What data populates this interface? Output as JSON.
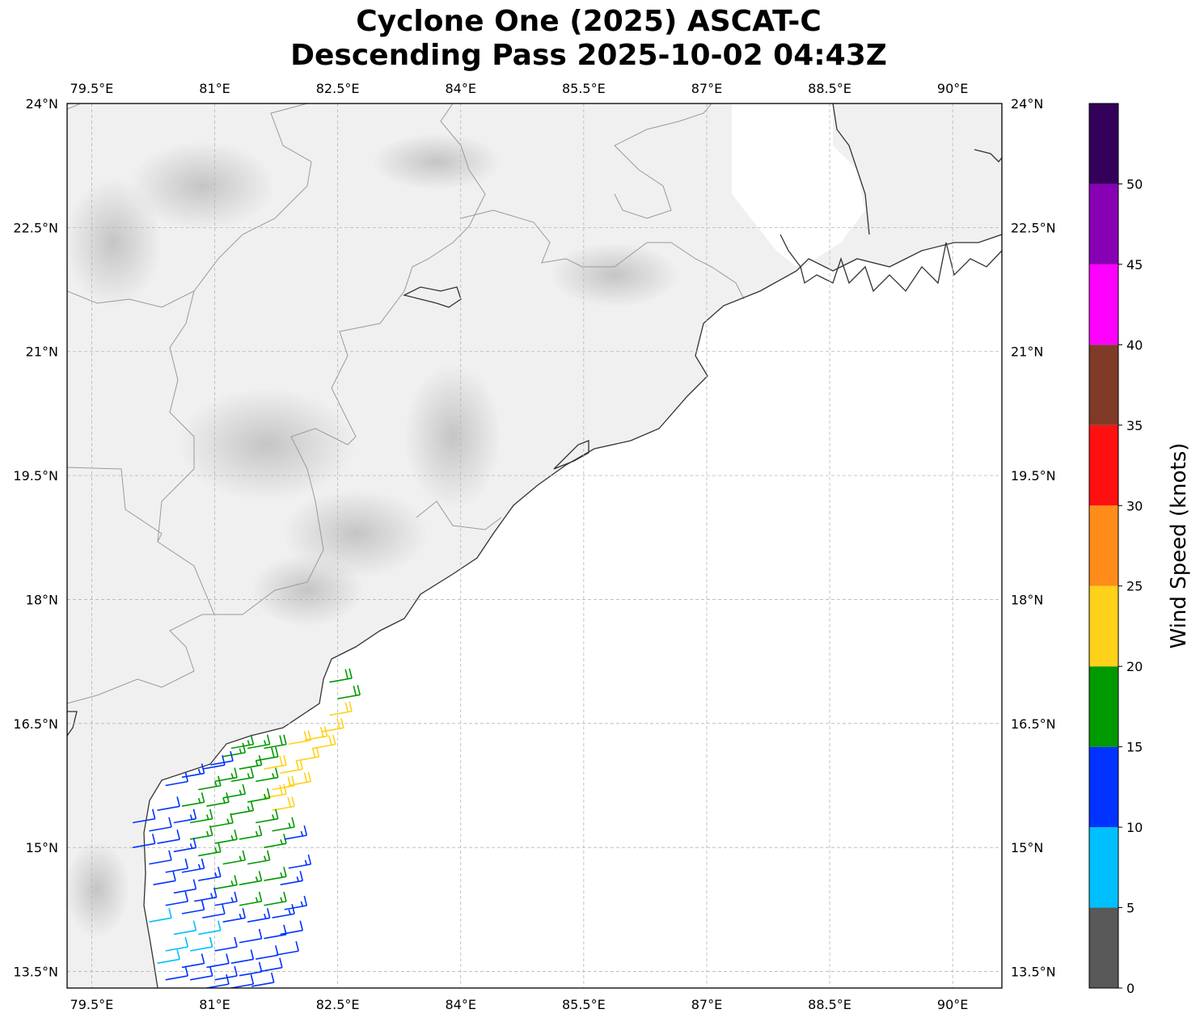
{
  "title_line1": "Cyclone One (2025) ASCAT-C",
  "title_line2": "Descending Pass 2025-10-02 04:43Z",
  "lon_labels": [
    "79.5°E",
    "81°E",
    "82.5°E",
    "84°E",
    "85.5°E",
    "87°E",
    "88.5°E",
    "90°E"
  ],
  "lat_labels": [
    "24°N",
    "22.5°N",
    "21°N",
    "19.5°N",
    "18°N",
    "16.5°N",
    "15°N",
    "13.5°N"
  ],
  "colorbar": {
    "label": "Wind Speed (knots)",
    "ticks": [
      "0",
      "5",
      "10",
      "15",
      "20",
      "25",
      "30",
      "35",
      "40",
      "45",
      "50"
    ],
    "bins": [
      {
        "from": 0,
        "to": 5,
        "color": "#595959"
      },
      {
        "from": 5,
        "to": 10,
        "color": "#00bfff"
      },
      {
        "from": 10,
        "to": 15,
        "color": "#0033ff"
      },
      {
        "from": 15,
        "to": 20,
        "color": "#009900"
      },
      {
        "from": 20,
        "to": 25,
        "color": "#ffd11a"
      },
      {
        "from": 25,
        "to": 30,
        "color": "#ff8c1a"
      },
      {
        "from": 30,
        "to": 35,
        "color": "#ff1010"
      },
      {
        "from": 35,
        "to": 40,
        "color": "#7f3b28"
      },
      {
        "from": 40,
        "to": 45,
        "color": "#ff00ff"
      },
      {
        "from": 45,
        "to": 50,
        "color": "#8800b3"
      },
      {
        "from": 50,
        "to": 55,
        "color": "#33005a"
      }
    ]
  },
  "map_extent": {
    "lon_min": 79.2,
    "lon_max": 90.6,
    "lat_min": 13.3,
    "lat_max": 24.0
  },
  "chart_data": {
    "type": "wind-barb-map",
    "units": "knots",
    "barbs": [
      {
        "lon": 82.4,
        "lat": 17.0,
        "speed": 18
      },
      {
        "lon": 82.5,
        "lat": 16.8,
        "speed": 18
      },
      {
        "lon": 82.4,
        "lat": 16.6,
        "speed": 21
      },
      {
        "lon": 82.3,
        "lat": 16.4,
        "speed": 22
      },
      {
        "lon": 82.1,
        "lat": 16.3,
        "speed": 22
      },
      {
        "lon": 82.2,
        "lat": 16.2,
        "speed": 22
      },
      {
        "lon": 81.9,
        "lat": 16.25,
        "speed": 22
      },
      {
        "lon": 82.0,
        "lat": 16.05,
        "speed": 22
      },
      {
        "lon": 81.8,
        "lat": 15.9,
        "speed": 22
      },
      {
        "lon": 81.9,
        "lat": 15.75,
        "speed": 22
      },
      {
        "lon": 81.7,
        "lat": 15.7,
        "speed": 22
      },
      {
        "lon": 81.7,
        "lat": 15.45,
        "speed": 21
      },
      {
        "lon": 81.6,
        "lat": 15.6,
        "speed": 21
      },
      {
        "lon": 81.6,
        "lat": 15.95,
        "speed": 21
      },
      {
        "lon": 81.5,
        "lat": 16.05,
        "speed": 18
      },
      {
        "lon": 81.6,
        "lat": 16.2,
        "speed": 18
      },
      {
        "lon": 81.4,
        "lat": 16.2,
        "speed": 17
      },
      {
        "lon": 81.2,
        "lat": 16.2,
        "speed": 17
      },
      {
        "lon": 81.1,
        "lat": 16.1,
        "speed": 16
      },
      {
        "lon": 81.3,
        "lat": 15.95,
        "speed": 17
      },
      {
        "lon": 81.5,
        "lat": 15.8,
        "speed": 17
      },
      {
        "lon": 81.2,
        "lat": 15.8,
        "speed": 17
      },
      {
        "lon": 81.0,
        "lat": 15.8,
        "speed": 16
      },
      {
        "lon": 80.8,
        "lat": 15.7,
        "speed": 15
      },
      {
        "lon": 81.1,
        "lat": 15.6,
        "speed": 17
      },
      {
        "lon": 81.4,
        "lat": 15.55,
        "speed": 17
      },
      {
        "lon": 80.9,
        "lat": 15.5,
        "speed": 16
      },
      {
        "lon": 80.6,
        "lat": 15.5,
        "speed": 16
      },
      {
        "lon": 81.2,
        "lat": 15.4,
        "speed": 17
      },
      {
        "lon": 81.5,
        "lat": 15.3,
        "speed": 17
      },
      {
        "lon": 81.7,
        "lat": 15.2,
        "speed": 17
      },
      {
        "lon": 80.95,
        "lat": 15.25,
        "speed": 16
      },
      {
        "lon": 80.7,
        "lat": 15.3,
        "speed": 15
      },
      {
        "lon": 81.3,
        "lat": 15.1,
        "speed": 17
      },
      {
        "lon": 81.6,
        "lat": 15.0,
        "speed": 17
      },
      {
        "lon": 81.0,
        "lat": 15.05,
        "speed": 16
      },
      {
        "lon": 80.7,
        "lat": 15.1,
        "speed": 15
      },
      {
        "lon": 81.1,
        "lat": 14.8,
        "speed": 16
      },
      {
        "lon": 81.4,
        "lat": 14.8,
        "speed": 17
      },
      {
        "lon": 80.8,
        "lat": 14.9,
        "speed": 15
      },
      {
        "lon": 81.3,
        "lat": 14.55,
        "speed": 17
      },
      {
        "lon": 81.6,
        "lat": 14.6,
        "speed": 17
      },
      {
        "lon": 81.0,
        "lat": 14.5,
        "speed": 15
      },
      {
        "lon": 81.3,
        "lat": 14.3,
        "speed": 16
      },
      {
        "lon": 81.6,
        "lat": 14.3,
        "speed": 16
      },
      {
        "lon": 81.8,
        "lat": 14.55,
        "speed": 14
      },
      {
        "lon": 81.9,
        "lat": 14.75,
        "speed": 14
      },
      {
        "lon": 81.85,
        "lat": 15.1,
        "speed": 14
      },
      {
        "lon": 80.6,
        "lat": 15.85,
        "speed": 13
      },
      {
        "lon": 80.4,
        "lat": 15.75,
        "speed": 12
      },
      {
        "lon": 80.3,
        "lat": 15.45,
        "speed": 12
      },
      {
        "lon": 80.5,
        "lat": 15.3,
        "speed": 13
      },
      {
        "lon": 80.2,
        "lat": 15.2,
        "speed": 12
      },
      {
        "lon": 80.0,
        "lat": 15.0,
        "speed": 11
      },
      {
        "lon": 80.3,
        "lat": 15.05,
        "speed": 12
      },
      {
        "lon": 80.5,
        "lat": 14.95,
        "speed": 13
      },
      {
        "lon": 80.2,
        "lat": 14.8,
        "speed": 12
      },
      {
        "lon": 80.4,
        "lat": 14.7,
        "speed": 12
      },
      {
        "lon": 80.6,
        "lat": 14.7,
        "speed": 13
      },
      {
        "lon": 80.8,
        "lat": 14.6,
        "speed": 13
      },
      {
        "lon": 80.25,
        "lat": 14.55,
        "speed": 12
      },
      {
        "lon": 80.5,
        "lat": 14.45,
        "speed": 12
      },
      {
        "lon": 80.75,
        "lat": 14.35,
        "speed": 13
      },
      {
        "lon": 81.0,
        "lat": 14.3,
        "speed": 13
      },
      {
        "lon": 80.4,
        "lat": 14.3,
        "speed": 11
      },
      {
        "lon": 80.6,
        "lat": 14.2,
        "speed": 12
      },
      {
        "lon": 80.85,
        "lat": 14.15,
        "speed": 12
      },
      {
        "lon": 81.1,
        "lat": 14.1,
        "speed": 13
      },
      {
        "lon": 81.4,
        "lat": 14.1,
        "speed": 13
      },
      {
        "lon": 81.7,
        "lat": 14.15,
        "speed": 13
      },
      {
        "lon": 81.85,
        "lat": 14.25,
        "speed": 13
      },
      {
        "lon": 80.2,
        "lat": 14.1,
        "speed": 8
      },
      {
        "lon": 80.5,
        "lat": 13.95,
        "speed": 9
      },
      {
        "lon": 80.8,
        "lat": 13.95,
        "speed": 8
      },
      {
        "lon": 80.4,
        "lat": 13.75,
        "speed": 9
      },
      {
        "lon": 80.7,
        "lat": 13.75,
        "speed": 9
      },
      {
        "lon": 81.0,
        "lat": 13.75,
        "speed": 11
      },
      {
        "lon": 81.3,
        "lat": 13.85,
        "speed": 12
      },
      {
        "lon": 81.6,
        "lat": 13.9,
        "speed": 12
      },
      {
        "lon": 81.8,
        "lat": 13.95,
        "speed": 12
      },
      {
        "lon": 80.3,
        "lat": 13.6,
        "speed": 8
      },
      {
        "lon": 80.6,
        "lat": 13.55,
        "speed": 11
      },
      {
        "lon": 80.9,
        "lat": 13.55,
        "speed": 11
      },
      {
        "lon": 81.2,
        "lat": 13.6,
        "speed": 12
      },
      {
        "lon": 81.5,
        "lat": 13.65,
        "speed": 12
      },
      {
        "lon": 81.75,
        "lat": 13.7,
        "speed": 12
      },
      {
        "lon": 80.4,
        "lat": 13.4,
        "speed": 11
      },
      {
        "lon": 80.7,
        "lat": 13.4,
        "speed": 11
      },
      {
        "lon": 81.0,
        "lat": 13.4,
        "speed": 12
      },
      {
        "lon": 81.3,
        "lat": 13.45,
        "speed": 12
      },
      {
        "lon": 81.55,
        "lat": 13.5,
        "speed": 12
      },
      {
        "lon": 80.9,
        "lat": 13.3,
        "speed": 11
      },
      {
        "lon": 81.2,
        "lat": 13.3,
        "speed": 12
      },
      {
        "lon": 81.45,
        "lat": 13.32,
        "speed": 12
      },
      {
        "lon": 80.0,
        "lat": 15.3,
        "speed": 11
      },
      {
        "lon": 80.85,
        "lat": 15.95,
        "speed": 12
      },
      {
        "lon": 80.95,
        "lat": 16.0,
        "speed": 11
      }
    ]
  }
}
